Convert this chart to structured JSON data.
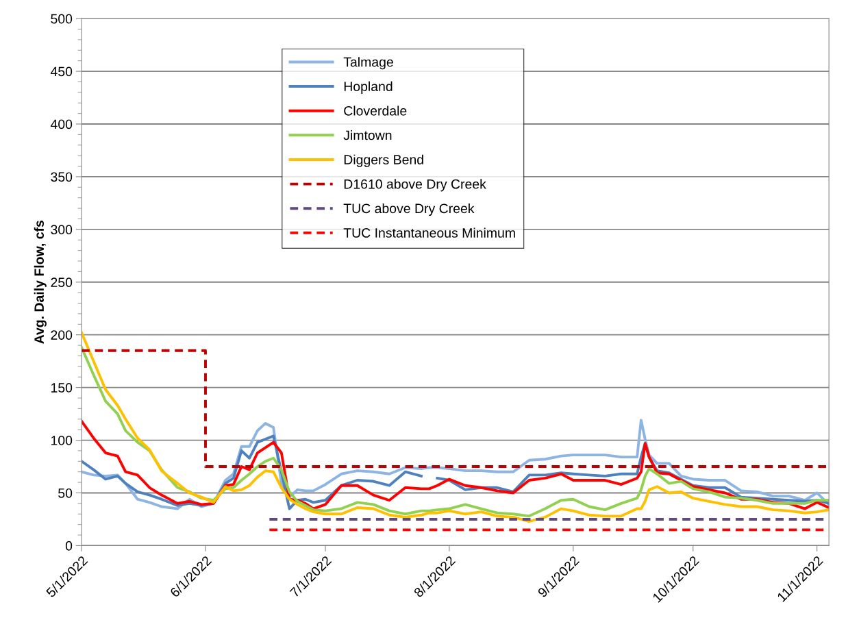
{
  "chart_data": {
    "type": "line",
    "ylabel": "Avg. Daily Flow, cfs",
    "x": [
      "2022-05-01",
      "2022-05-04",
      "2022-05-07",
      "2022-05-10",
      "2022-05-12",
      "2022-05-15",
      "2022-05-18",
      "2022-05-21",
      "2022-05-25",
      "2022-05-28",
      "2022-05-31",
      "2022-06-03",
      "2022-06-06",
      "2022-06-08",
      "2022-06-10",
      "2022-06-12",
      "2022-06-14",
      "2022-06-16",
      "2022-06-18",
      "2022-06-20",
      "2022-06-22",
      "2022-06-24",
      "2022-06-26",
      "2022-06-28",
      "2022-07-01",
      "2022-07-05",
      "2022-07-09",
      "2022-07-13",
      "2022-07-17",
      "2022-07-21",
      "2022-07-25",
      "2022-07-27",
      "2022-07-29",
      "2022-08-01",
      "2022-08-05",
      "2022-08-09",
      "2022-08-13",
      "2022-08-17",
      "2022-08-21",
      "2022-08-25",
      "2022-08-29",
      "2022-09-01",
      "2022-09-05",
      "2022-09-09",
      "2022-09-13",
      "2022-09-17",
      "2022-09-18",
      "2022-09-19",
      "2022-09-20",
      "2022-09-22",
      "2022-09-25",
      "2022-09-28",
      "2022-10-01",
      "2022-10-05",
      "2022-10-09",
      "2022-10-13",
      "2022-10-17",
      "2022-10-21",
      "2022-10-25",
      "2022-10-29",
      "2022-11-01",
      "2022-11-04"
    ],
    "series": [
      {
        "name": "Talmage",
        "color": "#8db4e2",
        "values": [
          70,
          67,
          66,
          67,
          59,
          44,
          41,
          37,
          35,
          44,
          37,
          40,
          62,
          68,
          94,
          94,
          109,
          116,
          112,
          59,
          46,
          53,
          52,
          52,
          58,
          68,
          71,
          70,
          68,
          74,
          73,
          74,
          74,
          73,
          71,
          71,
          70,
          70,
          81,
          82,
          85,
          86,
          86,
          86,
          84,
          84,
          119,
          101,
          86,
          78,
          78,
          66,
          63,
          62,
          62,
          52,
          51,
          47,
          47,
          43,
          50,
          39
        ]
      },
      {
        "name": "Hopland",
        "color": "#4f81bd",
        "values": [
          80,
          72,
          63,
          66,
          59,
          51,
          48,
          44,
          38,
          40,
          38,
          40,
          59,
          64,
          90,
          83,
          98,
          101,
          104,
          70,
          35,
          43,
          44,
          41,
          43,
          57,
          62,
          61,
          57,
          70,
          66,
          null,
          64,
          62,
          53,
          55,
          55,
          51,
          67,
          67,
          69,
          68,
          67,
          66,
          68,
          68,
          84,
          97,
          84,
          71,
          69,
          63,
          57,
          55,
          55,
          46,
          45,
          44,
          43,
          42,
          43,
          40
        ]
      },
      {
        "name": "Cloverdale",
        "color": "#ff0000",
        "values": [
          118,
          102,
          88,
          85,
          70,
          67,
          55,
          48,
          40,
          42,
          39,
          40,
          57,
          58,
          75,
          72,
          88,
          93,
          98,
          88,
          44,
          43,
          40,
          35,
          39,
          57,
          57,
          48,
          43,
          55,
          54,
          54,
          57,
          63,
          57,
          55,
          52,
          50,
          62,
          64,
          68,
          62,
          62,
          62,
          58,
          64,
          70,
          97,
          84,
          69,
          68,
          62,
          56,
          53,
          50,
          44,
          44,
          41,
          40,
          35,
          41,
          36
        ]
      },
      {
        "name": "Jimtown",
        "color": "#92d050",
        "values": [
          188,
          162,
          137,
          125,
          109,
          98,
          90,
          72,
          55,
          51,
          45,
          43,
          54,
          55,
          62,
          68,
          75,
          80,
          83,
          72,
          51,
          42,
          38,
          34,
          33,
          35,
          41,
          39,
          33,
          30,
          33,
          33,
          34,
          35,
          39,
          35,
          31,
          30,
          28,
          35,
          43,
          44,
          37,
          34,
          40,
          45,
          53,
          66,
          73,
          68,
          59,
          61,
          54,
          51,
          46,
          45,
          43,
          40,
          40,
          40,
          43,
          43
        ]
      },
      {
        "name": "Diggers Bend",
        "color": "#ffc000",
        "values": [
          202,
          175,
          148,
          133,
          120,
          102,
          91,
          71,
          59,
          50,
          46,
          41,
          56,
          52,
          53,
          57,
          65,
          71,
          70,
          55,
          44,
          39,
          35,
          32,
          30,
          30,
          36,
          35,
          29,
          27,
          29,
          31,
          31,
          33,
          30,
          32,
          28,
          27,
          23,
          27,
          35,
          33,
          29,
          28,
          28,
          35,
          35,
          42,
          53,
          56,
          50,
          51,
          45,
          42,
          39,
          37,
          37,
          34,
          33,
          31,
          32,
          34
        ]
      },
      {
        "name": "D1610 above Dry Creek",
        "color": "#c00000",
        "line_style": "dashed",
        "x": [
          "2022-05-01",
          "2022-06-01",
          "2022-06-01",
          "2022-11-04"
        ],
        "values": [
          185,
          185,
          75,
          75
        ]
      },
      {
        "name": "TUC above Dry Creek",
        "color": "#604a7b",
        "line_style": "dashed",
        "x": [
          "2022-06-17",
          "2022-11-04"
        ],
        "values": [
          25,
          25
        ]
      },
      {
        "name": "TUC Instantaneous Minimum",
        "color": "#ff0000",
        "line_style": "dashed",
        "x": [
          "2022-06-17",
          "2022-11-04"
        ],
        "values": [
          15,
          15
        ]
      }
    ],
    "xlim": [
      "2022-05-01",
      "2022-11-04"
    ],
    "xticks": [
      {
        "value": "2022-05-01",
        "label": "5/1/2022"
      },
      {
        "value": "2022-06-01",
        "label": "6/1/2022"
      },
      {
        "value": "2022-07-01",
        "label": "7/1/2022"
      },
      {
        "value": "2022-08-01",
        "label": "8/1/2022"
      },
      {
        "value": "2022-09-01",
        "label": "9/1/2022"
      },
      {
        "value": "2022-10-01",
        "label": "10/1/2022"
      },
      {
        "value": "2022-11-01",
        "label": "11/1/2022"
      }
    ],
    "ylim": [
      0,
      500
    ],
    "yticks": [
      0,
      50,
      100,
      150,
      200,
      250,
      300,
      350,
      400,
      450,
      500
    ],
    "grid": "y",
    "legend": "top",
    "line_style": "solid",
    "marker": "none"
  }
}
